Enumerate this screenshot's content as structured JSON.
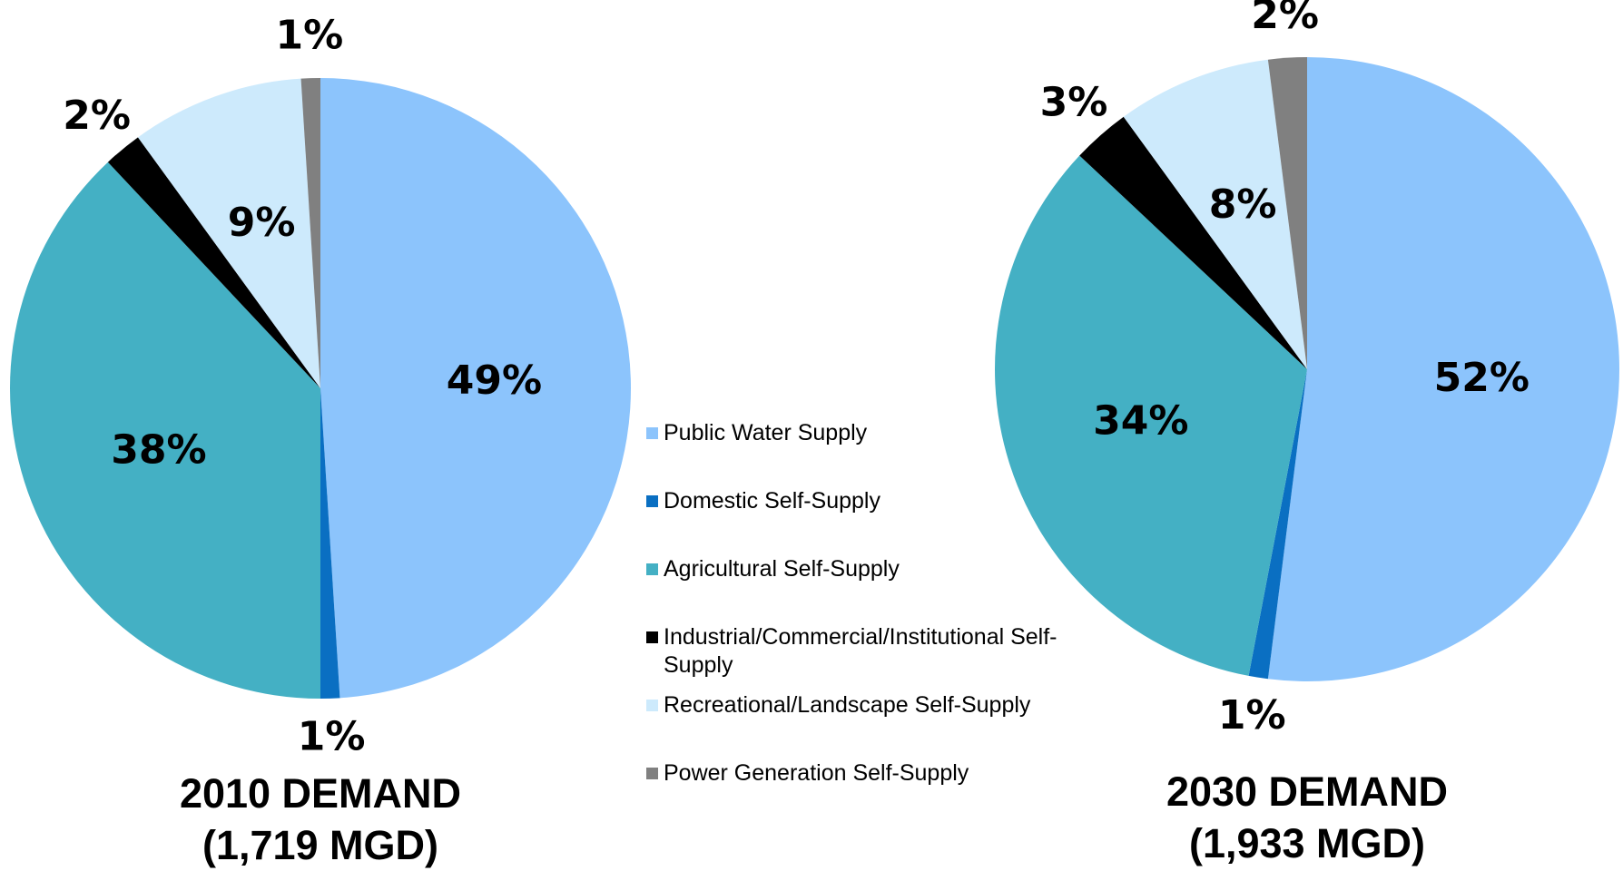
{
  "chart_data": [
    {
      "type": "pie",
      "title": "2010 DEMAND",
      "subtitle": "(1,719 MGD)",
      "categories": [
        "Public Water Supply",
        "Domestic Self-Supply",
        "Agricultural Self-Supply",
        "Industrial/Commercial/Institutional Self-Supply",
        "Recreational/Landscape Self-Supply",
        "Power Generation Self-Supply"
      ],
      "colors": [
        "#8cc4fc",
        "#0a6fc2",
        "#44b0c4",
        "#000000",
        "#cdeafc",
        "#808080"
      ],
      "values": [
        49,
        1,
        38,
        2,
        9,
        1
      ],
      "value_labels": [
        "49%",
        "1%",
        "38%",
        "2%",
        "9%",
        "1%"
      ]
    },
    {
      "type": "pie",
      "title": "2030 DEMAND",
      "subtitle": "(1,933 MGD)",
      "values": [
        52,
        1,
        34,
        3,
        8,
        2
      ],
      "value_labels": [
        "52%",
        "1%",
        "34%",
        "3%",
        "8%",
        "2%"
      ]
    }
  ]
}
